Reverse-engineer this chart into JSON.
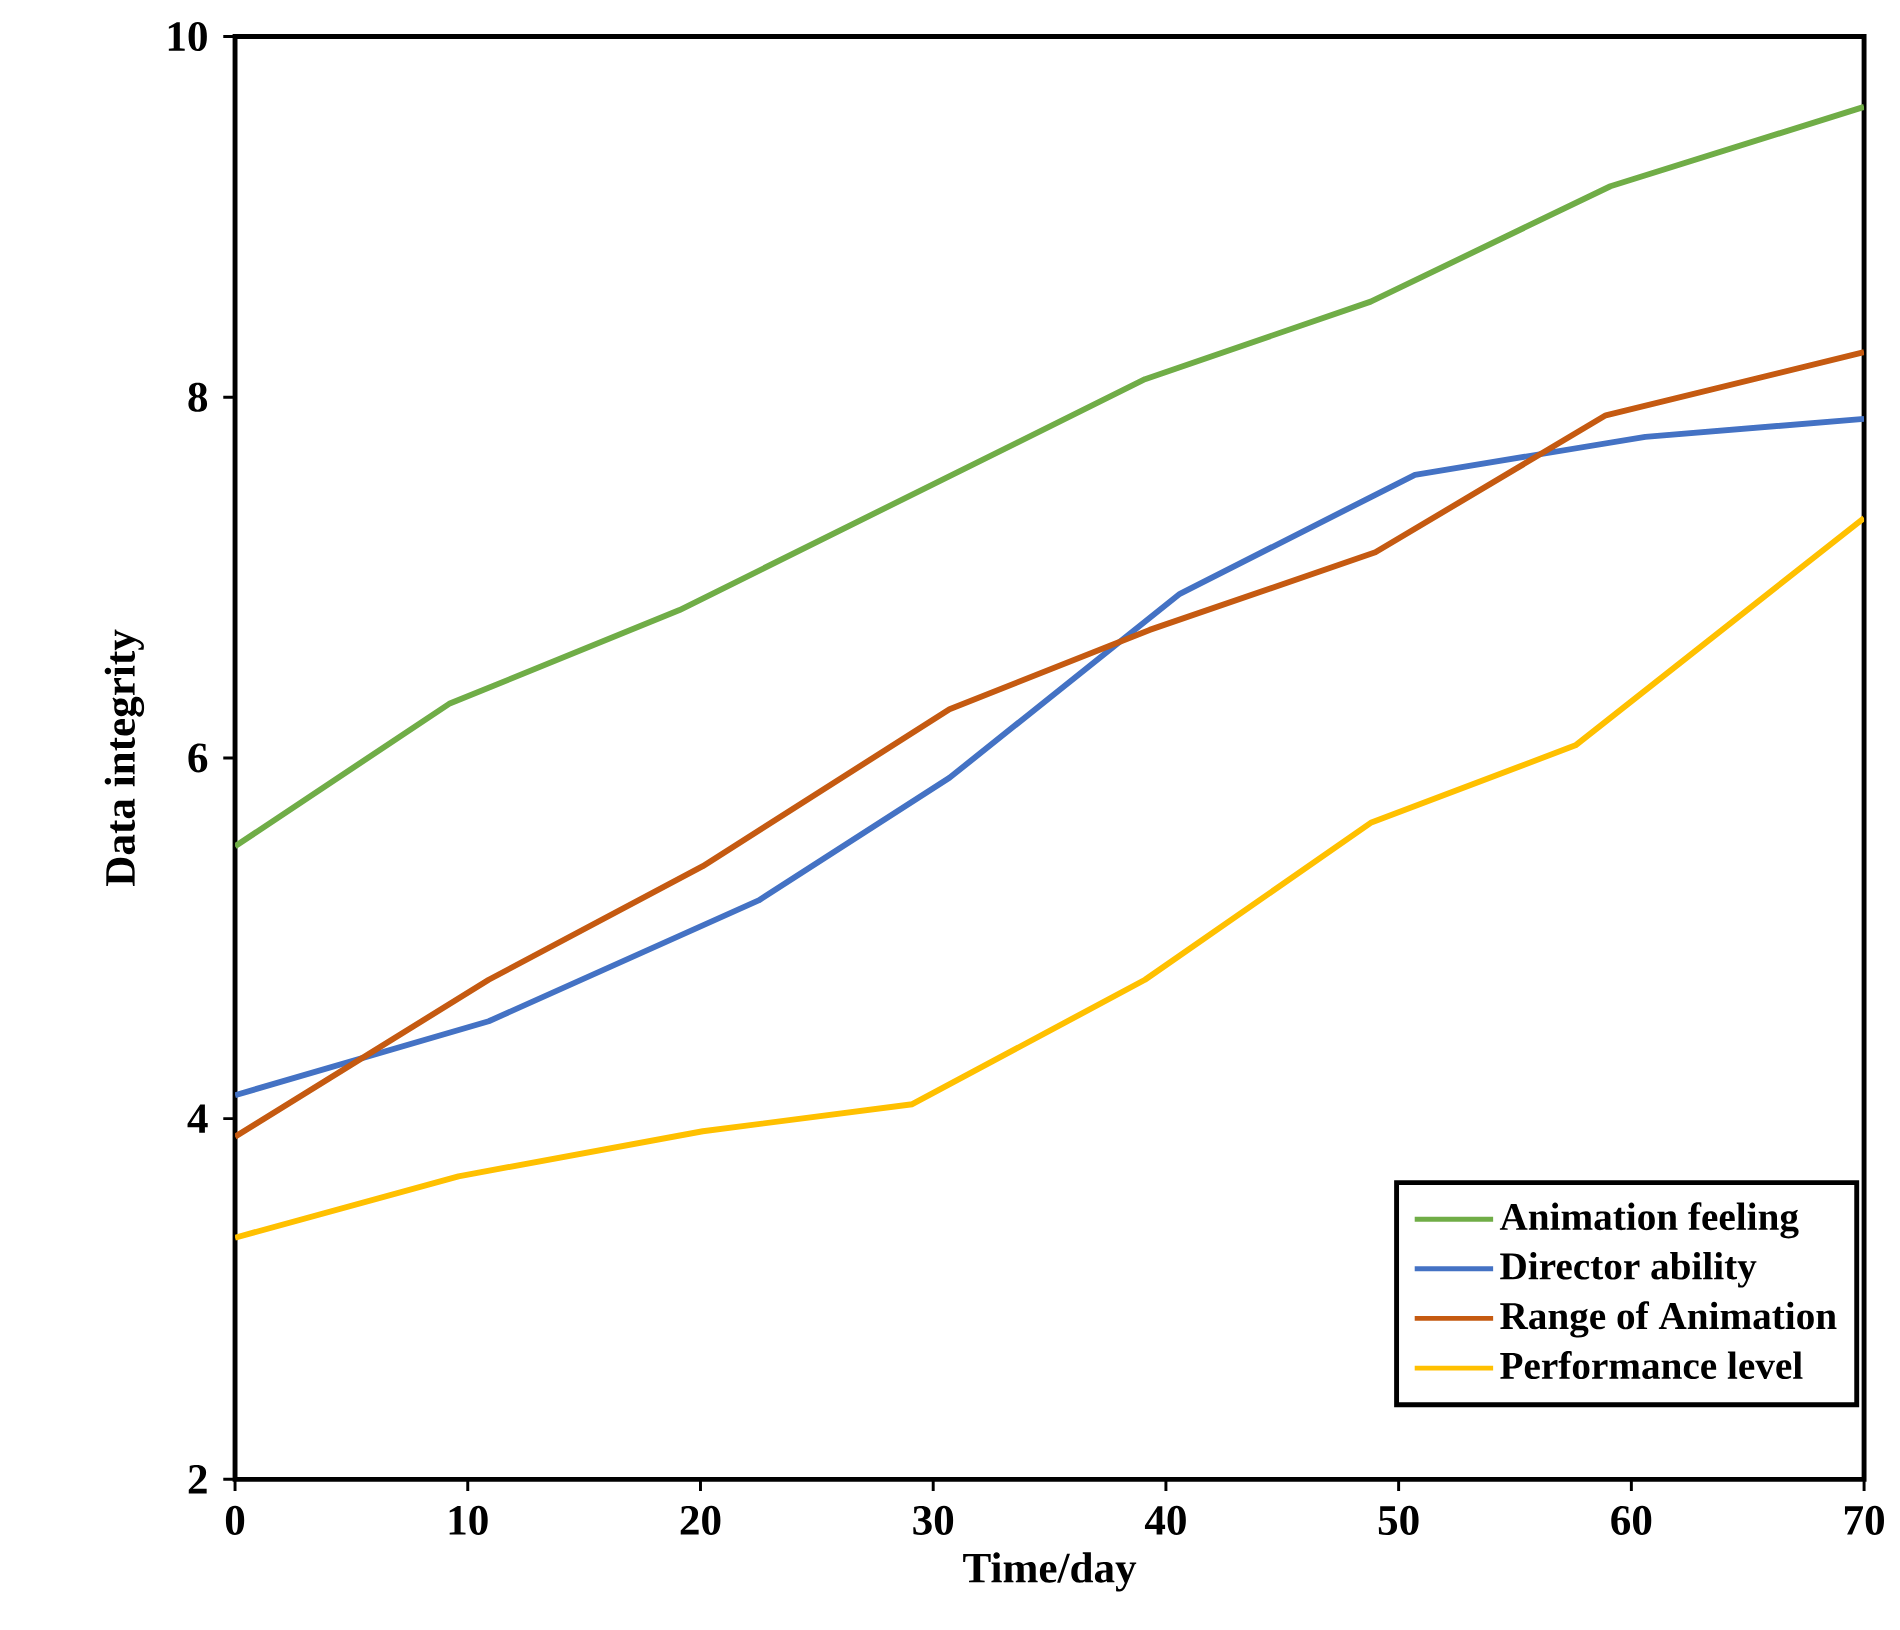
{
  "chart_data": {
    "type": "line",
    "xlabel": "Time/day",
    "ylabel": "Data integrity",
    "xlim": [
      0,
      70
    ],
    "ylim": [
      2,
      10
    ],
    "xticks": [
      0,
      10,
      20,
      30,
      40,
      50,
      60,
      70
    ],
    "yticks": [
      2,
      4,
      6,
      8,
      10
    ],
    "grid": false,
    "legend": "bottom right",
    "marker": "none",
    "line_style": "solid",
    "series": [
      {
        "name": "Animation feeling",
        "color": "#70ad47",
        "x": [
          0,
          9.2,
          19.1,
          39.1,
          48.8,
          59.1,
          70
        ],
        "values": [
          5.51,
          6.3,
          6.82,
          8.1,
          8.53,
          9.17,
          9.61
        ]
      },
      {
        "name": "Director ability",
        "color": "#4472c4",
        "x": [
          0,
          10.9,
          22.5,
          30.7,
          40.6,
          50.7,
          60.6,
          70
        ],
        "values": [
          4.13,
          4.54,
          5.21,
          5.89,
          6.91,
          7.57,
          7.78,
          7.88
        ]
      },
      {
        "name": "Range of Animation",
        "color": "#c55a11",
        "x": [
          0,
          10.9,
          20.1,
          30.7,
          39.3,
          49.0,
          58.9,
          70
        ],
        "values": [
          3.9,
          4.77,
          5.4,
          6.27,
          6.71,
          7.14,
          7.9,
          8.25
        ]
      },
      {
        "name": "Performance level",
        "color": "#ffc000",
        "x": [
          0,
          9.6,
          20.1,
          29.1,
          39.1,
          48.8,
          57.6,
          70
        ],
        "values": [
          3.34,
          3.68,
          3.93,
          4.08,
          4.77,
          5.64,
          6.07,
          7.33
        ]
      }
    ]
  }
}
